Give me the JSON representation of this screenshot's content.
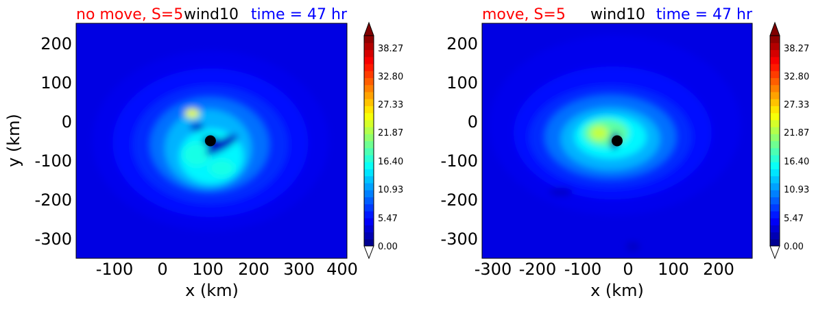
{
  "chart_data": [
    {
      "type": "heatmap",
      "title_parts": {
        "left": "no move, S=5",
        "center": "wind10",
        "right": "time = 47 hr"
      },
      "title_colors": {
        "left": "#ff0000",
        "center": "#000000",
        "right": "#0000ff"
      },
      "xlabel": "x (km)",
      "ylabel": "y (km)",
      "xlim": [
        -185,
        410
      ],
      "ylim": [
        -350,
        250
      ],
      "xticks": [
        "-100",
        "0",
        "100",
        "200",
        "300",
        "400"
      ],
      "xtick_values": [
        -100,
        0,
        100,
        200,
        300,
        400
      ],
      "yticks": [
        "200",
        "100",
        "0",
        "-100",
        "-200",
        "-300"
      ],
      "ytick_values": [
        200,
        100,
        0,
        -100,
        -200,
        -300
      ],
      "center_marker": {
        "x": 110,
        "y": -50
      },
      "colorbar": {
        "min": 0,
        "max": 41,
        "ticks": [
          "38.27",
          "32.80",
          "27.33",
          "21.87",
          "16.40",
          "10.93",
          "5.47",
          "0.00"
        ],
        "tick_values": [
          38.27,
          32.8,
          27.33,
          21.87,
          16.4,
          10.93,
          5.47,
          0.0
        ],
        "extend": "both"
      },
      "blobs": [
        {
          "x": 110,
          "y": -50,
          "rx": 260,
          "ry": 230,
          "v": 4.4,
          "rot": 0
        },
        {
          "x": 110,
          "y": -55,
          "rx": 215,
          "ry": 190,
          "v": 5.5,
          "rot": 0
        },
        {
          "x": 110,
          "y": -60,
          "rx": 170,
          "ry": 150,
          "v": 6.9,
          "rot": 0
        },
        {
          "x": 108,
          "y": -60,
          "rx": 130,
          "ry": 120,
          "v": 9.6,
          "rot": 0
        },
        {
          "x": 105,
          "y": -70,
          "rx": 95,
          "ry": 100,
          "v": 12.3,
          "rot": 0
        },
        {
          "x": 112,
          "y": -90,
          "rx": 70,
          "ry": 70,
          "v": 15.0,
          "rot": 0
        },
        {
          "x": 80,
          "y": -85,
          "rx": 30,
          "ry": 30,
          "v": 16.4,
          "rot": 0
        },
        {
          "x": 135,
          "y": -120,
          "rx": 28,
          "ry": 22,
          "v": 16.4,
          "rot": 0
        },
        {
          "x": 70,
          "y": 20,
          "rx": 16,
          "ry": 12,
          "v": 24.6,
          "rot": 0
        },
        {
          "x": 80,
          "y": -15,
          "rx": 15,
          "ry": 10,
          "v": 2.8,
          "rot": 0
        },
        {
          "x": 135,
          "y": -60,
          "rx": 40,
          "ry": 14,
          "v": 2.8,
          "rot": -30
        },
        {
          "x": 110,
          "y": -50,
          "rx": 18,
          "ry": 13,
          "v": 1.5,
          "rot": 0
        }
      ]
    },
    {
      "type": "heatmap",
      "title_parts": {
        "left": "move, S=5",
        "center": "wind10",
        "right": "time = 47 hr"
      },
      "title_colors": {
        "left": "#ff0000",
        "center": "#000000",
        "right": "#0000ff"
      },
      "xlabel": "x (km)",
      "ylabel": "",
      "xlim": [
        -325,
        275
      ],
      "ylim": [
        -350,
        250
      ],
      "xticks": [
        "-300",
        "-200",
        "-100",
        "0",
        "100",
        "200"
      ],
      "xtick_values": [
        -300,
        -200,
        -100,
        0,
        100,
        200
      ],
      "yticks": [
        "200",
        "100",
        "0",
        "-100",
        "-200",
        "-300"
      ],
      "ytick_values": [
        200,
        100,
        0,
        -100,
        -200,
        -300
      ],
      "center_marker": {
        "x": -25,
        "y": -50
      },
      "colorbar": {
        "min": 0,
        "max": 41,
        "ticks": [
          "38.27",
          "32.80",
          "27.33",
          "21.87",
          "16.40",
          "10.93",
          "5.47",
          "0.00"
        ],
        "tick_values": [
          38.27,
          32.8,
          27.33,
          21.87,
          16.4,
          10.93,
          5.47,
          0.0
        ],
        "extend": "both"
      },
      "blobs": [
        {
          "x": -30,
          "y": -10,
          "rx": 280,
          "ry": 230,
          "v": 4.4,
          "rot": 0
        },
        {
          "x": -35,
          "y": -30,
          "rx": 220,
          "ry": 170,
          "v": 5.5,
          "rot": 0
        },
        {
          "x": -40,
          "y": -40,
          "rx": 180,
          "ry": 130,
          "v": 6.9,
          "rot": 0
        },
        {
          "x": -40,
          "y": -40,
          "rx": 145,
          "ry": 105,
          "v": 9.6,
          "rot": 0
        },
        {
          "x": -40,
          "y": -45,
          "rx": 110,
          "ry": 80,
          "v": 12.3,
          "rot": 0
        },
        {
          "x": -40,
          "y": -40,
          "rx": 80,
          "ry": 55,
          "v": 15.0,
          "rot": 0
        },
        {
          "x": -50,
          "y": -30,
          "rx": 50,
          "ry": 35,
          "v": 19.1,
          "rot": 0
        },
        {
          "x": -65,
          "y": -30,
          "rx": 20,
          "ry": 18,
          "v": 23.2,
          "rot": 0
        },
        {
          "x": -150,
          "y": -180,
          "rx": 25,
          "ry": 10,
          "v": 2.8,
          "rot": 0
        },
        {
          "x": 10,
          "y": -320,
          "rx": 15,
          "ry": 12,
          "v": 2.8,
          "rot": 0
        },
        {
          "x": -30,
          "y": -50,
          "rx": 10,
          "ry": 22,
          "v": 1.5,
          "rot": 10
        }
      ]
    }
  ]
}
